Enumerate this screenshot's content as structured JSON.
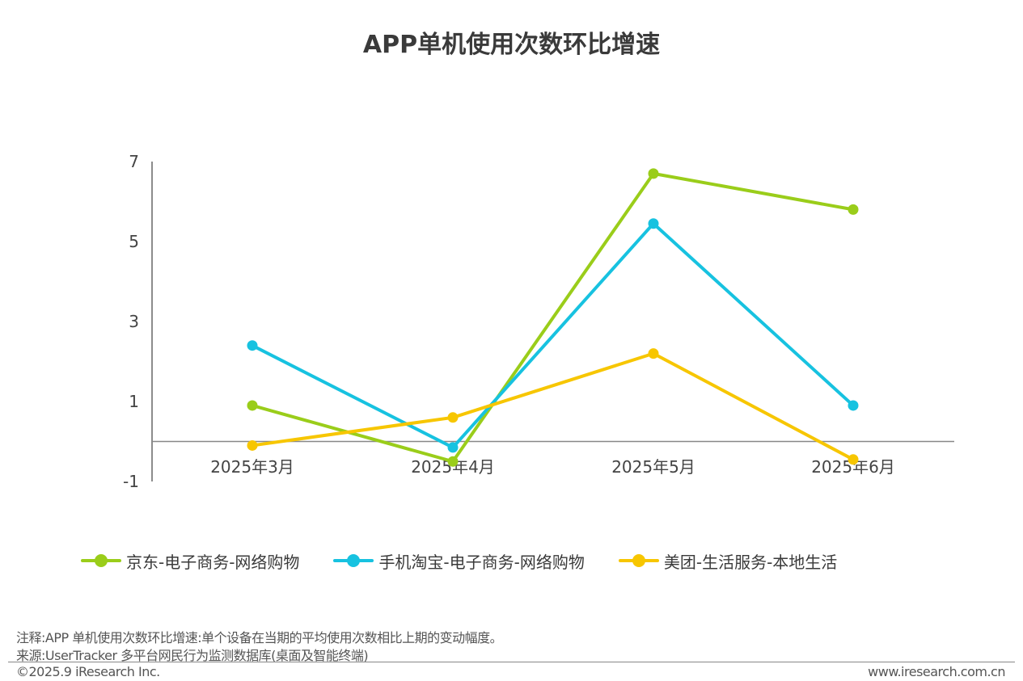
{
  "chart_data": {
    "type": "line",
    "title": "APP单机使用次数环比增速",
    "categories": [
      "2025年3月",
      "2025年4月",
      "2025年5月",
      "2025年6月"
    ],
    "yticks": [
      -1,
      1,
      3,
      5,
      7
    ],
    "ylim": [
      -1,
      7
    ],
    "xlabel": "",
    "ylabel": "",
    "legend_position": "bottom",
    "series": [
      {
        "name": "京东-电子商务-网络购物",
        "color": "#9ACD1A",
        "values": [
          0.9,
          -0.5,
          6.7,
          5.8
        ]
      },
      {
        "name": "手机淘宝-电子商务-网络购物",
        "color": "#17C2E0",
        "values": [
          2.4,
          -0.15,
          5.45,
          0.9
        ]
      },
      {
        "name": "美团-生活服务-本地生活",
        "color": "#F7C600",
        "values": [
          -0.1,
          0.6,
          2.2,
          -0.45
        ]
      }
    ]
  },
  "notes": {
    "note": "注释:APP 单机使用次数环比增速:单个设备在当期的平均使用次数相比上期的变动幅度。",
    "source": "来源:UserTracker 多平台网民行为监测数据库(桌面及智能终端)"
  },
  "footer": {
    "copyright": "©2025.9 iResearch Inc.",
    "website": "www.iresearch.com.cn"
  }
}
